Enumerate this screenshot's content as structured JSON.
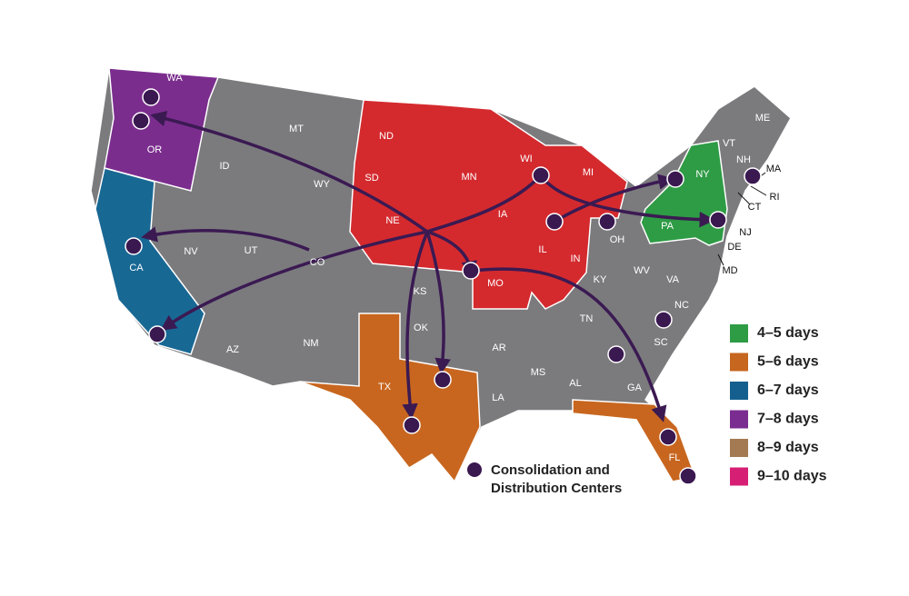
{
  "states": [
    "WA",
    "OR",
    "CA",
    "ID",
    "NV",
    "MT",
    "WY",
    "UT",
    "AZ",
    "CO",
    "NM",
    "ND",
    "SD",
    "NE",
    "KS",
    "OK",
    "TX",
    "MN",
    "IA",
    "MO",
    "AR",
    "LA",
    "WI",
    "IL",
    "MI",
    "IN",
    "OH",
    "KY",
    "TN",
    "MS",
    "AL",
    "GA",
    "FL",
    "SC",
    "NC",
    "VA",
    "WV",
    "PA",
    "NY",
    "VT",
    "NH",
    "ME",
    "MA",
    "RI",
    "CT",
    "NJ",
    "DE",
    "MD"
  ],
  "legend": {
    "items": [
      {
        "label": "4–5 days",
        "color": "#2e9b45"
      },
      {
        "label": "5–6 days",
        "color": "#c6661f"
      },
      {
        "label": "6–7 days",
        "color": "#155f8e"
      },
      {
        "label": "7–8 days",
        "color": "#7a2c90"
      },
      {
        "label": "8–9 days",
        "color": "#a37a52"
      },
      {
        "label": "9–10 days",
        "color": "#d61f74"
      }
    ],
    "centers_label": [
      "Consolidation and",
      "Distribution Centers"
    ]
  }
}
